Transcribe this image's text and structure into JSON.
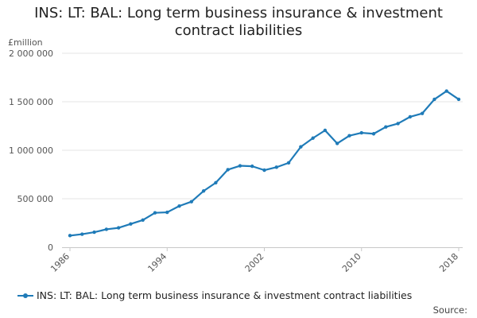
{
  "chart_data": {
    "type": "line",
    "title_lines": [
      "INS: LT: BAL: Long term business insurance & investment",
      "contract liabilities"
    ],
    "unit_label": "£million",
    "x": [
      1986,
      1987,
      1988,
      1989,
      1990,
      1991,
      1992,
      1993,
      1994,
      1995,
      1996,
      1997,
      1998,
      1999,
      2000,
      2001,
      2002,
      2003,
      2004,
      2005,
      2006,
      2007,
      2008,
      2009,
      2010,
      2011,
      2012,
      2013,
      2014,
      2015,
      2016,
      2017,
      2018
    ],
    "series": [
      {
        "name": "INS: LT: BAL: Long term business insurance & investment contract liabilities",
        "color": "#1f7bb8",
        "values": [
          120000,
          135000,
          155000,
          185000,
          200000,
          240000,
          280000,
          355000,
          360000,
          425000,
          470000,
          580000,
          665000,
          800000,
          840000,
          835000,
          795000,
          825000,
          870000,
          1035000,
          1125000,
          1205000,
          1070000,
          1150000,
          1180000,
          1170000,
          1240000,
          1275000,
          1345000,
          1380000,
          1525000,
          1610000,
          1525000
        ]
      }
    ],
    "xticks": [
      "1986",
      "1994",
      "2002",
      "2010",
      "2018"
    ],
    "yticks": [
      "0",
      "500 000",
      "1 000 000",
      "1 500 000",
      "2 000 000"
    ],
    "ylim": [
      0,
      2000000
    ],
    "xlim": [
      1986,
      2018
    ],
    "grid": true,
    "legend_position": "bottom"
  },
  "source_label": "Source:"
}
